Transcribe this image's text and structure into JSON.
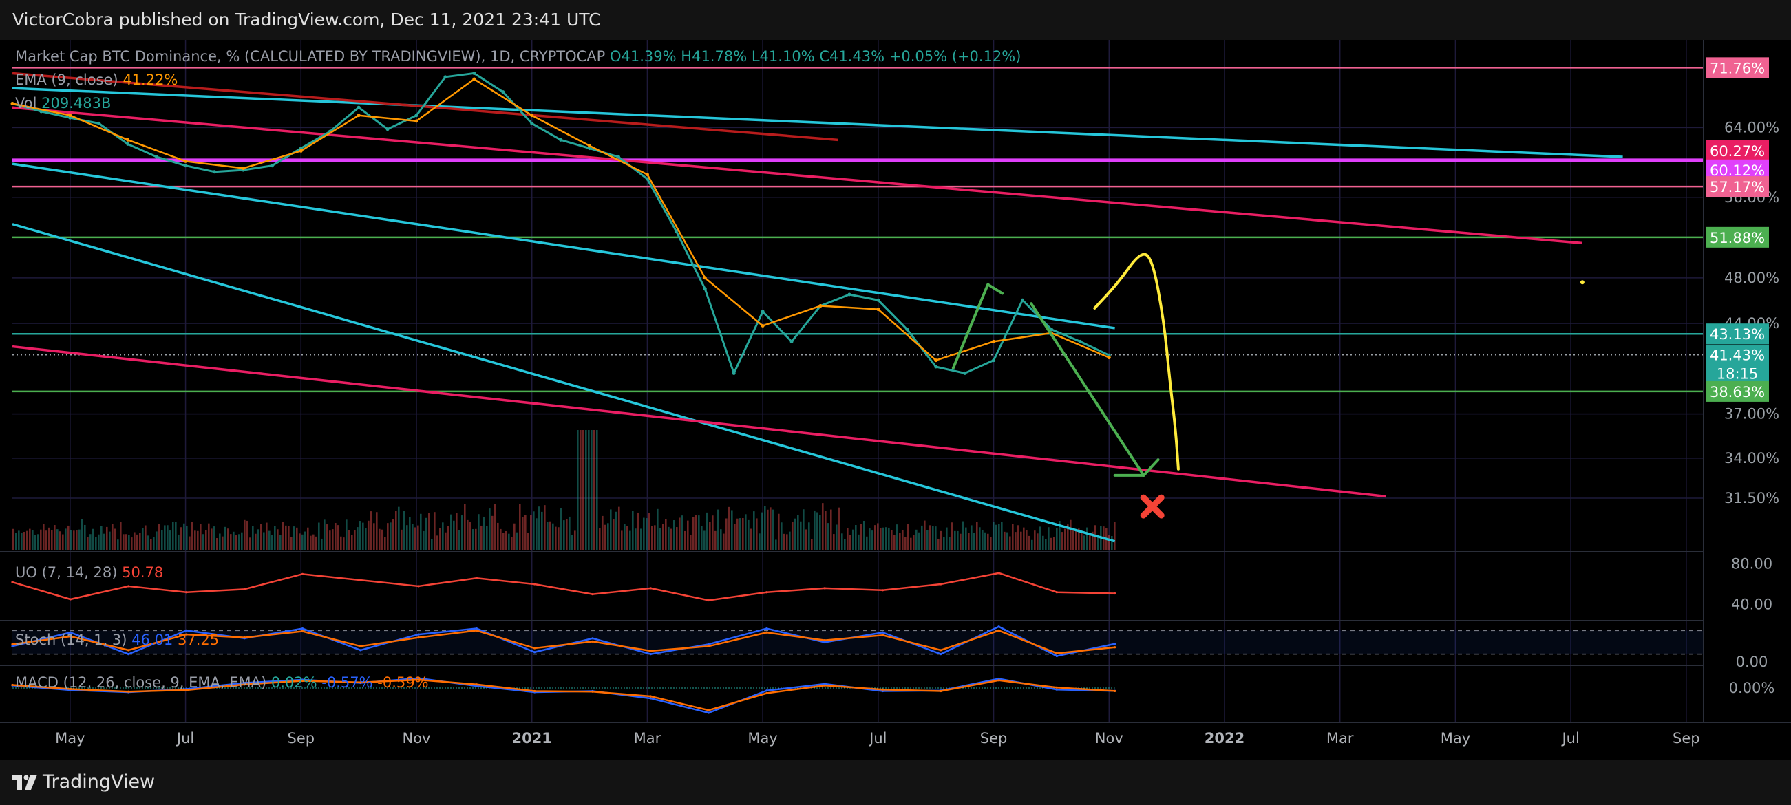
{
  "header": {
    "publisher_line": "VictorCobra published on TradingView.com, Dec 11, 2021 23:41 UTC"
  },
  "footer": {
    "brand": "TradingView"
  },
  "chart_data": [
    {
      "type": "line",
      "panel": "main",
      "legend_main": "Market Cap BTC Dominance, % (CALCULATED BY TRADINGVIEW), 1D, CRYPTOCAP",
      "ohlc": {
        "o": "O41.39%",
        "h": "H41.78%",
        "l": "L41.10%",
        "c": "C41.43%",
        "chg": "+0.05% (+0.12%)"
      },
      "ema_label": "EMA (9, close)",
      "ema_value": "41.22%",
      "vol_label": "Vol",
      "vol_value": "209.483B",
      "x_ticks": [
        "May",
        "Jul",
        "Sep",
        "Nov",
        "2021",
        "Mar",
        "May",
        "Jul",
        "Sep",
        "Nov",
        "2022",
        "Mar",
        "May",
        "Jul",
        "Sep"
      ],
      "y_ticks": [
        "64.00%",
        "56.00%",
        "48.00%",
        "44.00%",
        "37.00%",
        "34.00%",
        "31.50%"
      ],
      "y_scale": "log",
      "ylim": [
        28.5,
        74.0
      ],
      "xlim": [
        0.0,
        29.3
      ],
      "price_badges": [
        {
          "label": "71.76%",
          "value": 71.76,
          "color": "#f06292"
        },
        {
          "label": "60.27%",
          "value": 60.27,
          "color": "#e91e63"
        },
        {
          "label": "60.12%",
          "value": 60.12,
          "color": "#e040fb"
        },
        {
          "label": "57.17%",
          "value": 57.17,
          "color": "#f06292"
        },
        {
          "label": "51.88%",
          "value": 51.88,
          "color": "#4caf50"
        },
        {
          "label": "43.13%",
          "value": 43.13,
          "color": "#26a69a"
        },
        {
          "label": "41.43%",
          "value": 41.43,
          "color": "#26a69a"
        },
        {
          "label": "18:15",
          "value": 41.43,
          "color": "#26a69a"
        },
        {
          "label": "38.63%",
          "value": 38.63,
          "color": "#4caf50"
        }
      ],
      "horizontal_levels": [
        {
          "value": 71.76,
          "color": "#f06292"
        },
        {
          "value": 60.12,
          "color": "#e040fb"
        },
        {
          "value": 57.17,
          "color": "#f06292"
        },
        {
          "value": 51.88,
          "color": "#4caf50"
        },
        {
          "value": 43.13,
          "color": "#26a69a"
        },
        {
          "value": 38.63,
          "color": "#4caf50"
        }
      ],
      "trendlines": [
        {
          "from": [
            0.0,
            69.0
          ],
          "to": [
            27.9,
            60.5
          ],
          "color": "#26c6da"
        },
        {
          "from": [
            0.0,
            59.7
          ],
          "to": [
            19.1,
            43.6
          ],
          "color": "#26c6da"
        },
        {
          "from": [
            0.0,
            53.2
          ],
          "to": [
            19.1,
            29.0
          ],
          "color": "#26c6da"
        },
        {
          "from": [
            0.0,
            66.5
          ],
          "to": [
            27.2,
            51.3
          ],
          "color": "#e91e63"
        },
        {
          "from": [
            0.0,
            42.1
          ],
          "to": [
            23.8,
            31.6
          ],
          "color": "#e91e63"
        },
        {
          "from": [
            0.0,
            71.0
          ],
          "to": [
            14.3,
            62.5
          ],
          "color": "#b71c1c"
        }
      ],
      "series": [
        {
          "name": "",
          "color": "#26a69a",
          "x": [
            0.0,
            0.5,
            1.0,
            1.5,
            2.0,
            2.5,
            3.0,
            3.5,
            4.0,
            4.5,
            5.0,
            5.5,
            6.0,
            6.5,
            7.0,
            7.5,
            8.0,
            8.5,
            9.0,
            9.5,
            10.0,
            10.5,
            11.0,
            11.5,
            12.0,
            12.5,
            13.0,
            13.5,
            14.0,
            14.5,
            15.0,
            15.5,
            16.0,
            16.5,
            17.0,
            17.5,
            18.0,
            18.5,
            19.0
          ],
          "y": [
            67.0,
            66.0,
            65.2,
            64.5,
            62.0,
            60.5,
            59.5,
            58.8,
            59.0,
            59.5,
            61.5,
            63.5,
            66.5,
            63.8,
            65.5,
            70.5,
            71.0,
            68.5,
            64.5,
            62.5,
            61.5,
            60.5,
            58.0,
            52.5,
            47.0,
            40.0,
            45.0,
            42.5,
            45.5,
            46.5,
            46.0,
            43.5,
            40.5,
            40.0,
            41.0,
            46.0,
            43.5,
            42.5,
            41.4
          ]
        },
        {
          "name": "EMA (9, close)",
          "color": "#ff9800",
          "x": [
            0.0,
            1.0,
            2.0,
            3.0,
            4.0,
            5.0,
            6.0,
            7.0,
            8.0,
            9.0,
            10.0,
            11.0,
            12.0,
            13.0,
            14.0,
            15.0,
            16.0,
            17.0,
            18.0,
            19.0
          ],
          "y": [
            67.0,
            65.5,
            62.5,
            60.0,
            59.2,
            61.2,
            65.5,
            64.8,
            70.2,
            65.5,
            61.8,
            58.5,
            48.0,
            43.8,
            45.5,
            45.2,
            41.0,
            42.5,
            43.2,
            41.22
          ]
        }
      ],
      "annotations": [
        {
          "kind": "polyline",
          "color": "#4caf50",
          "points": [
            [
              16.3,
              40.4
            ],
            [
              16.9,
              47.4
            ],
            [
              17.15,
              46.6
            ]
          ]
        },
        {
          "kind": "polyline",
          "color": "#4caf50",
          "points": [
            [
              17.65,
              45.7
            ],
            [
              19.6,
              32.9
            ],
            [
              19.85,
              33.9
            ]
          ]
        },
        {
          "kind": "polyline",
          "color": "#4caf50",
          "points": [
            [
              19.1,
              32.9
            ],
            [
              19.6,
              32.9
            ]
          ]
        },
        {
          "kind": "curve",
          "color": "#ffeb3b",
          "points": [
            [
              18.75,
              45.3
            ],
            [
              19.15,
              47.5
            ],
            [
              19.55,
              50.5
            ],
            [
              19.75,
              49.8
            ],
            [
              19.95,
              44.2
            ],
            [
              20.05,
              39.5
            ],
            [
              20.15,
              36.0
            ],
            [
              20.2,
              33.3
            ]
          ]
        },
        {
          "kind": "dot",
          "color": "#ffeb3b",
          "points": [
            [
              27.2,
              47.6
            ]
          ]
        },
        {
          "kind": "cross",
          "color": "#f44336",
          "points": [
            [
              19.75,
              31.0
            ]
          ]
        }
      ]
    },
    {
      "type": "line",
      "panel": "uo",
      "legend": "UO (7, 14, 28)",
      "value": "50.78",
      "y_ticks": [
        "80.00",
        "40.00"
      ],
      "ylim": [
        30,
        90
      ],
      "series": [
        {
          "name": "UO (7, 14, 28)",
          "color": "#f44336",
          "x": [
            0,
            1,
            2,
            3,
            4,
            5,
            6,
            7,
            8,
            9,
            10,
            11,
            12,
            13,
            14,
            15,
            16,
            17,
            18,
            19
          ],
          "y": [
            62,
            45,
            58,
            52,
            55,
            70,
            64,
            58,
            66,
            60,
            50,
            56,
            44,
            52,
            56,
            54,
            60,
            71,
            52,
            50.78
          ]
        }
      ]
    },
    {
      "type": "line",
      "panel": "stoch",
      "legend": "Stoch (14, 1, 3)",
      "k_value": "46.01",
      "d_value": "37.25",
      "y_ticks": [
        "0.00"
      ],
      "ylim": [
        0,
        100
      ],
      "bands": [
        20,
        80
      ],
      "series": [
        {
          "name": "%K",
          "color": "#2962ff",
          "x": [
            0,
            1,
            2,
            3,
            4,
            5,
            6,
            7,
            8,
            9,
            10,
            11,
            12,
            13,
            14,
            15,
            16,
            17,
            18,
            19
          ],
          "y": [
            40,
            75,
            20,
            80,
            60,
            85,
            30,
            70,
            85,
            25,
            60,
            20,
            45,
            85,
            50,
            75,
            20,
            90,
            15,
            46.01
          ]
        },
        {
          "name": "%D",
          "color": "#ff6d00",
          "x": [
            0,
            1,
            2,
            3,
            4,
            5,
            6,
            7,
            8,
            9,
            10,
            11,
            12,
            13,
            14,
            15,
            16,
            17,
            18,
            19
          ],
          "y": [
            45,
            65,
            30,
            70,
            62,
            78,
            40,
            62,
            80,
            35,
            52,
            28,
            40,
            75,
            55,
            68,
            30,
            80,
            22,
            37.25
          ]
        }
      ]
    },
    {
      "type": "line",
      "panel": "macd",
      "legend": "MACD (12, 26, close, 9, EMA, EMA)",
      "hist_value": "0.02%",
      "macd_value": "-0.57%",
      "signal_value": "-0.59%",
      "y_ticks": [
        "0.00%"
      ],
      "ylim": [
        -6,
        4
      ],
      "series": [
        {
          "name": "MACD",
          "color": "#2962ff",
          "x": [
            0,
            1,
            2,
            3,
            4,
            5,
            6,
            7,
            8,
            9,
            10,
            11,
            12,
            13,
            14,
            15,
            16,
            17,
            18,
            19
          ],
          "y": [
            0.5,
            -0.4,
            -0.8,
            -0.2,
            1.0,
            1.6,
            1.0,
            1.9,
            0.4,
            -0.8,
            -0.6,
            -2.0,
            -4.8,
            -0.5,
            0.8,
            -0.6,
            -0.5,
            1.8,
            -0.3,
            -0.57
          ]
        },
        {
          "name": "Signal",
          "color": "#ff6d00",
          "x": [
            0,
            1,
            2,
            3,
            4,
            5,
            6,
            7,
            8,
            9,
            10,
            11,
            12,
            13,
            14,
            15,
            16,
            17,
            18,
            19
          ],
          "y": [
            0.6,
            -0.2,
            -0.7,
            -0.4,
            0.7,
            1.4,
            1.1,
            1.6,
            0.7,
            -0.6,
            -0.7,
            -1.6,
            -4.3,
            -1.0,
            0.5,
            -0.3,
            -0.6,
            1.5,
            0.1,
            -0.59
          ]
        }
      ]
    }
  ]
}
